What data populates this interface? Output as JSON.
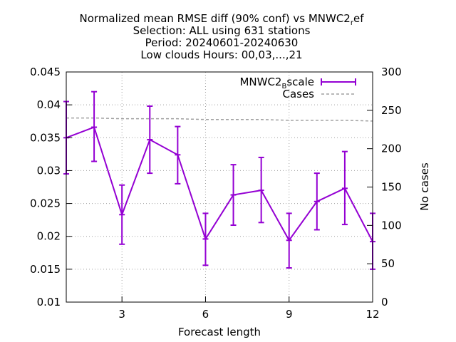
{
  "chart_data": {
    "type": "line",
    "title_lines": [
      "Normalized mean RMSE diff (90% conf) vs MNWC2",
      "Selection: ALL using   631 stations",
      "Period: 20240601-20240630",
      "Low clouds   Hours: 00,03,...,21"
    ],
    "title_sub": "r",
    "title_tail": "ef",
    "xlabel": "Forecast length",
    "ylabel_right": "No cases",
    "xlim": [
      1,
      12
    ],
    "ylim": [
      0.01,
      0.045
    ],
    "y2lim": [
      0,
      300
    ],
    "xticks": [
      "3",
      "6",
      "9",
      "12"
    ],
    "xtick_values": [
      3,
      6,
      9,
      12
    ],
    "yticks": [
      "0.01",
      "0.015",
      "0.02",
      "0.025",
      "0.03",
      "0.035",
      "0.04",
      "0.045"
    ],
    "ytick_values": [
      0.01,
      0.015,
      0.02,
      0.025,
      0.03,
      0.035,
      0.04,
      0.045
    ],
    "y2ticks": [
      "0",
      "50",
      "100",
      "150",
      "200",
      "250",
      "300"
    ],
    "y2tick_values": [
      0,
      50,
      100,
      150,
      200,
      250,
      300
    ],
    "grid": true,
    "legend_position": "top-right",
    "series": [
      {
        "name_main": "MNWC2",
        "name_sub": "B",
        "name_tail": "scale",
        "color": "#9400d3",
        "axis": "y",
        "x": [
          1,
          2,
          3,
          4,
          5,
          6,
          7,
          8,
          9,
          10,
          11,
          12
        ],
        "values": [
          0.035,
          0.0366,
          0.0233,
          0.0347,
          0.0324,
          0.0196,
          0.0263,
          0.027,
          0.0194,
          0.0253,
          0.0273,
          0.0192
        ],
        "err_low": [
          0.0295,
          0.0314,
          0.0188,
          0.0296,
          0.028,
          0.0156,
          0.0217,
          0.0221,
          0.0152,
          0.021,
          0.0218,
          0.015
        ],
        "err_high": [
          0.0405,
          0.042,
          0.0278,
          0.0398,
          0.0367,
          0.0235,
          0.0309,
          0.032,
          0.0235,
          0.0296,
          0.0329,
          0.0235
        ]
      },
      {
        "name": "Cases",
        "color": "#a0a0a0",
        "axis": "y2",
        "dashed": true,
        "x": [
          1,
          2,
          3,
          4,
          5,
          6,
          7,
          8,
          9,
          10,
          11,
          12
        ],
        "values": [
          240,
          240,
          239,
          239,
          239,
          238,
          238,
          238,
          237,
          237,
          237,
          236
        ]
      }
    ]
  }
}
